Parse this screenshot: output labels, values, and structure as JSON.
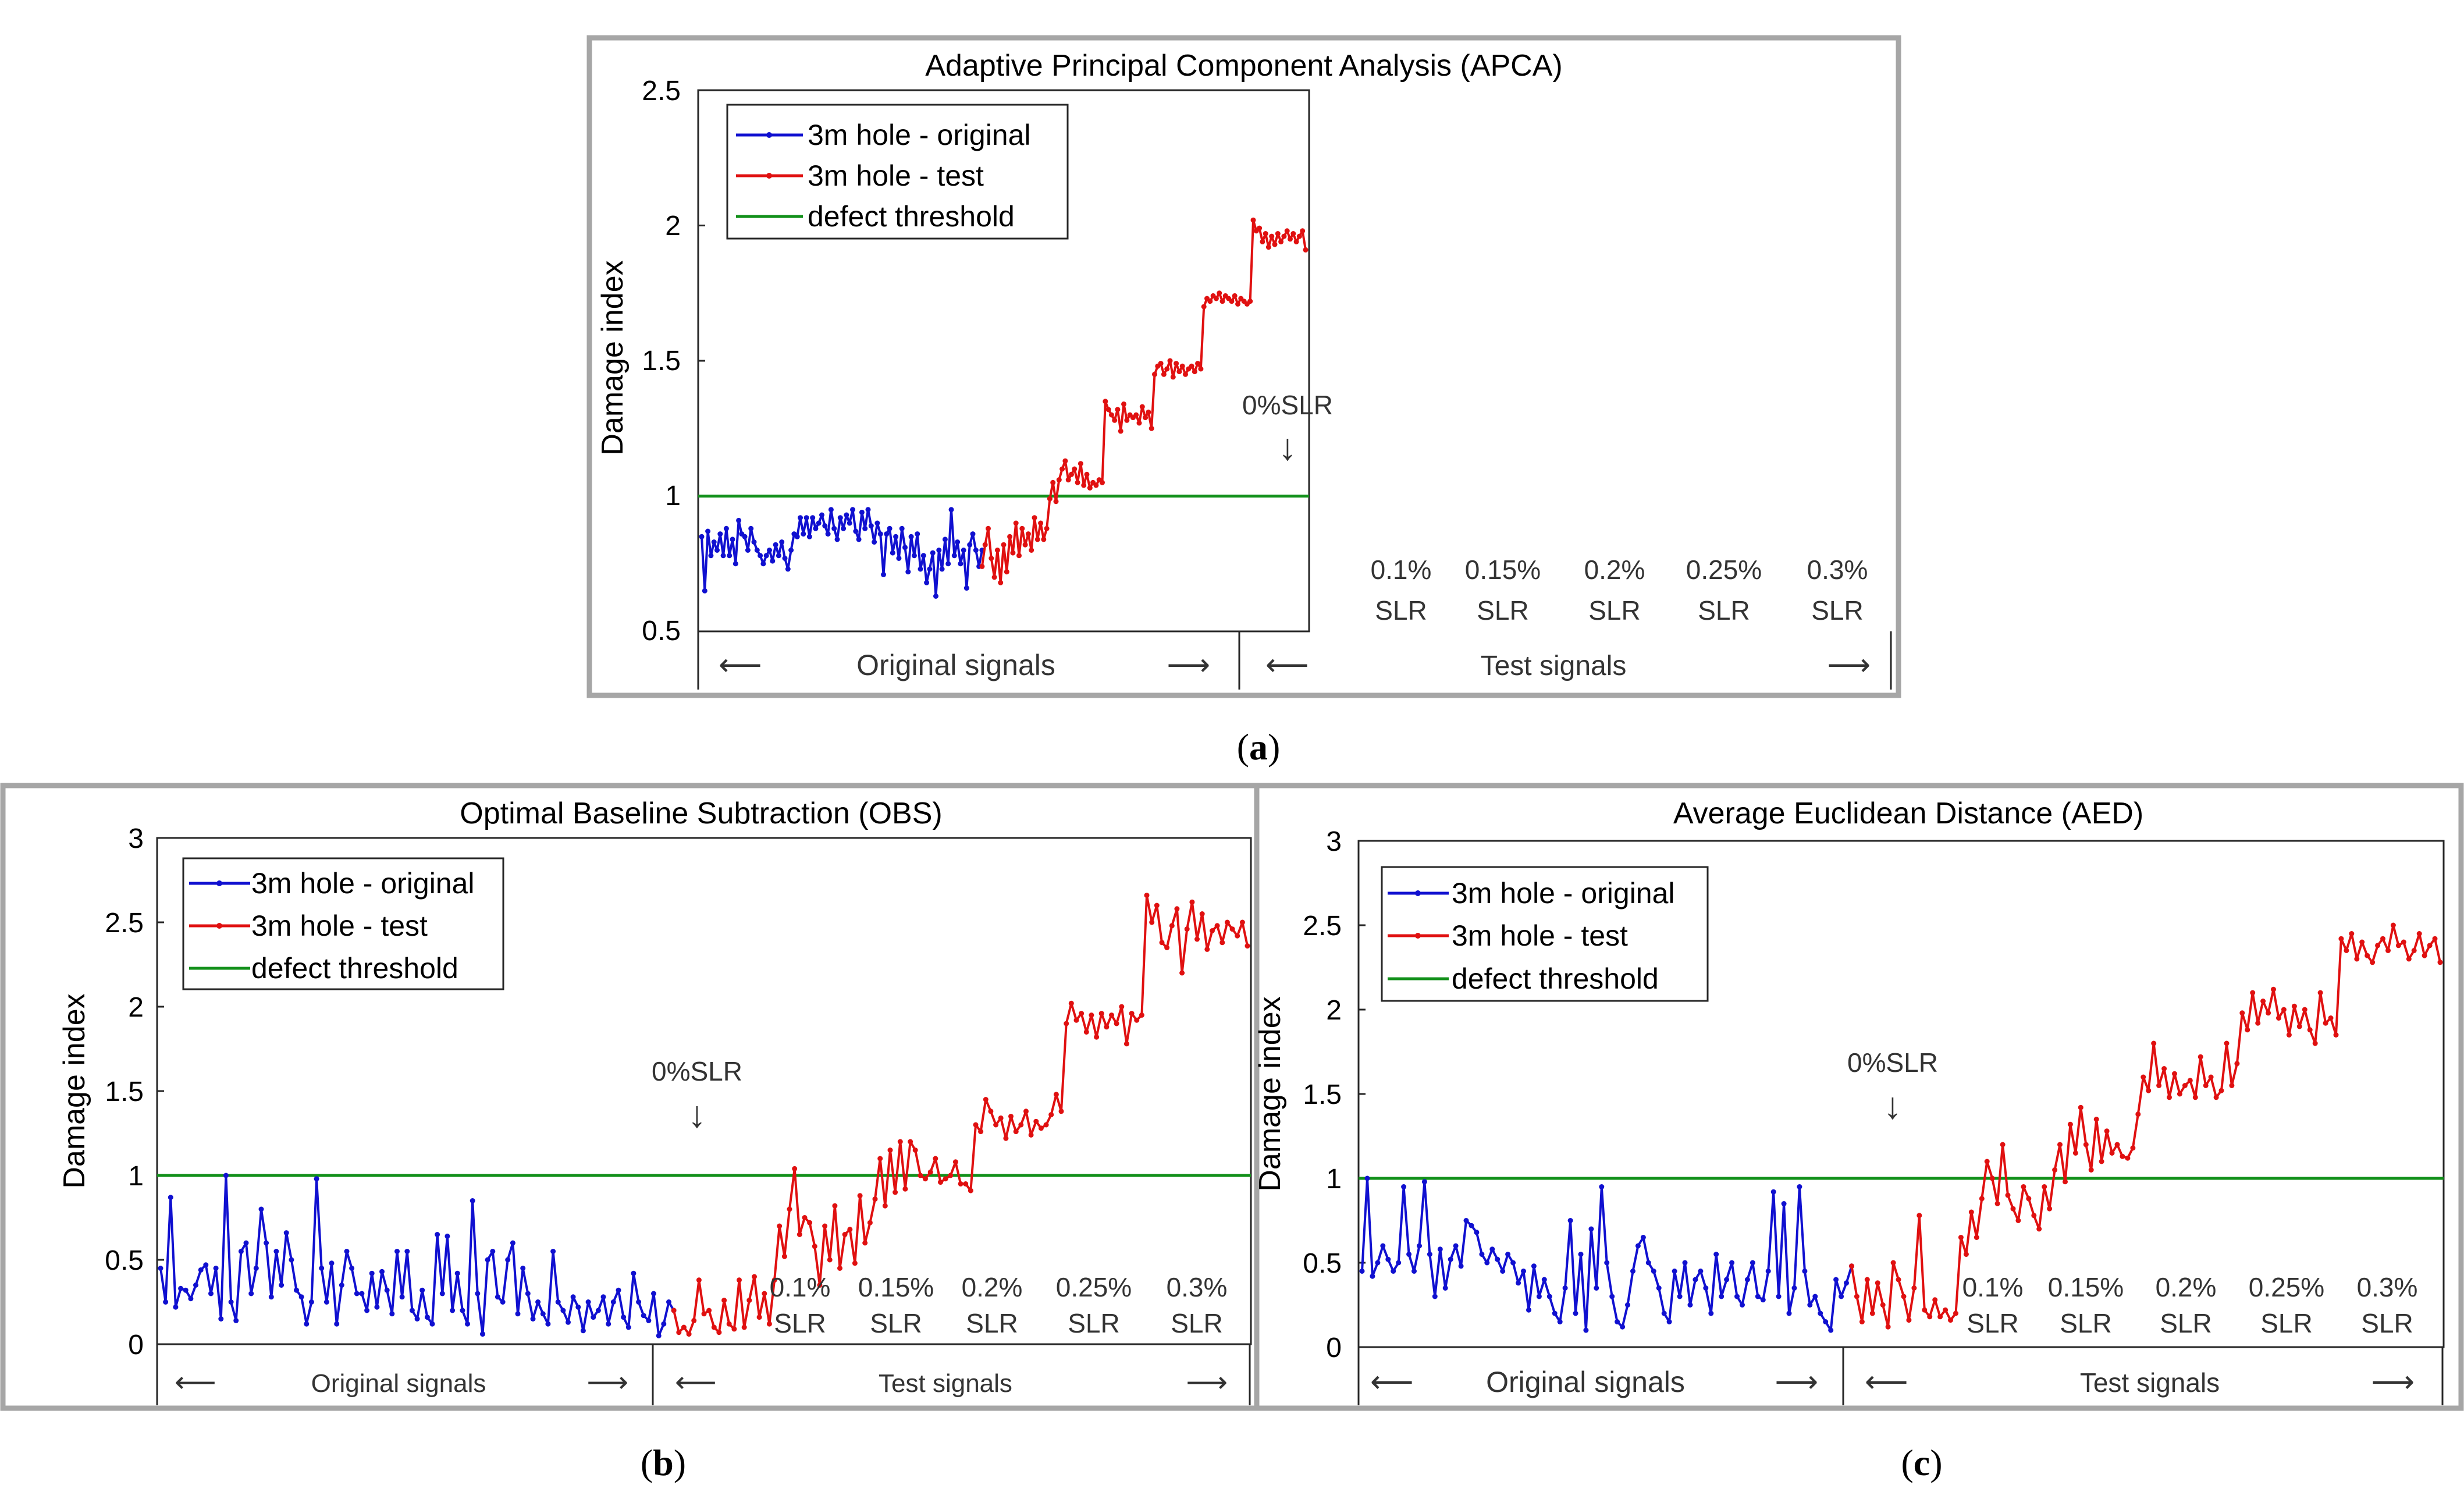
{
  "colors": {
    "original": "#1010d0",
    "test": "#e01010",
    "threshold": "#12901a",
    "frame": "#a6a6a6",
    "axis": "#262626"
  },
  "panel_labels": {
    "a": {
      "open": "(",
      "letter": "a",
      "close": ")"
    },
    "b": {
      "open": "(",
      "letter": "b",
      "close": ")"
    },
    "c": {
      "open": "(",
      "letter": "c",
      "close": ")"
    }
  },
  "chart_data": [
    {
      "id": "a",
      "type": "line",
      "title": "Adaptive Principal Component Analysis (APCA)",
      "ylabel": "Damage index",
      "xlabel": "",
      "ylim": [
        0.5,
        2.5
      ],
      "yticks": [
        "0.5",
        "1",
        "1.5",
        "2",
        "2.5"
      ],
      "ytick_values": [
        0.5,
        1,
        1.5,
        2,
        2.5
      ],
      "threshold": 1,
      "legend": {
        "position": "top-left",
        "entries": [
          "3m hole - original",
          "3m hole - test",
          "defect threshold"
        ]
      },
      "zero_annotation": {
        "text": "0%SLR",
        "arrow": "↓",
        "index": 100
      },
      "section_labels": [
        {
          "pct": "0.1%",
          "unit": "SLR"
        },
        {
          "pct": "0.15%",
          "unit": "SLR"
        },
        {
          "pct": "0.2%",
          "unit": "SLR"
        },
        {
          "pct": "0.25%",
          "unit": "SLR"
        },
        {
          "pct": "0.3%",
          "unit": "SLR"
        }
      ],
      "segment_labels": {
        "original": "Original signals",
        "test": "Test signals",
        "left_arrow": "⟵",
        "right_arrow": "⟶"
      },
      "series": [
        {
          "name": "3m hole - original",
          "x_start": 0,
          "values": [
            0.85,
            0.65,
            0.87,
            0.78,
            0.83,
            0.8,
            0.86,
            0.78,
            0.88,
            0.78,
            0.84,
            0.75,
            0.91,
            0.86,
            0.85,
            0.8,
            0.88,
            0.83,
            0.8,
            0.78,
            0.75,
            0.78,
            0.8,
            0.76,
            0.82,
            0.78,
            0.83,
            0.77,
            0.73,
            0.8,
            0.86,
            0.85,
            0.92,
            0.86,
            0.92,
            0.85,
            0.92,
            0.88,
            0.9,
            0.93,
            0.89,
            0.86,
            0.95,
            0.88,
            0.84,
            0.92,
            0.88,
            0.93,
            0.9,
            0.95,
            0.87,
            0.84,
            0.94,
            0.88,
            0.95,
            0.89,
            0.83,
            0.9,
            0.86,
            0.71,
            0.86,
            0.88,
            0.79,
            0.85,
            0.77,
            0.88,
            0.81,
            0.72,
            0.85,
            0.78,
            0.86,
            0.73,
            0.78,
            0.68,
            0.73,
            0.79,
            0.63,
            0.8,
            0.73,
            0.84,
            0.75,
            0.95,
            0.78,
            0.83,
            0.75,
            0.8,
            0.66,
            0.82,
            0.86,
            0.8,
            0.74,
            0.8
          ]
        },
        {
          "name": "3m hole - test",
          "x_start": 91,
          "values": [
            0.74,
            0.82,
            0.88,
            0.77,
            0.7,
            0.8,
            0.68,
            0.82,
            0.72,
            0.85,
            0.79,
            0.9,
            0.78,
            0.88,
            0.82,
            0.86,
            0.8,
            0.92,
            0.84,
            0.9,
            0.84,
            0.88,
            0.99,
            1.05,
            0.98,
            1.06,
            1.1,
            1.13,
            1.06,
            1.08,
            1.1,
            1.05,
            1.12,
            1.04,
            1.08,
            1.03,
            1.05,
            1.04,
            1.06,
            1.05,
            1.35,
            1.32,
            1.3,
            1.28,
            1.32,
            1.24,
            1.34,
            1.28,
            1.3,
            1.29,
            1.3,
            1.27,
            1.33,
            1.29,
            1.31,
            1.25,
            1.45,
            1.48,
            1.49,
            1.45,
            1.47,
            1.5,
            1.44,
            1.49,
            1.46,
            1.48,
            1.45,
            1.47,
            1.48,
            1.46,
            1.49,
            1.47,
            1.7,
            1.73,
            1.72,
            1.74,
            1.73,
            1.75,
            1.72,
            1.74,
            1.73,
            1.72,
            1.74,
            1.71,
            1.73,
            1.72,
            1.71,
            1.72,
            2.02,
            1.98,
            1.99,
            1.94,
            1.97,
            1.92,
            1.96,
            1.93,
            1.97,
            1.94,
            1.96,
            1.98,
            1.95,
            1.97,
            1.94,
            1.96,
            1.98,
            1.91
          ]
        }
      ]
    },
    {
      "id": "b",
      "type": "line",
      "title": "Optimal Baseline Subtraction  (OBS)",
      "ylabel": "Damage index",
      "xlabel": "",
      "ylim": [
        0,
        3
      ],
      "yticks": [
        "0",
        "0.5",
        "1",
        "1.5",
        "2",
        "2.5",
        "3"
      ],
      "ytick_values": [
        0,
        0.5,
        1,
        1.5,
        2,
        2.5,
        3
      ],
      "threshold": 1,
      "legend": {
        "position": "top-left",
        "entries": [
          "3m hole - original",
          "3m hole - test",
          "defect threshold"
        ]
      },
      "zero_annotation": {
        "text": "0%SLR",
        "arrow": "↓",
        "index": 100
      },
      "section_labels": [
        {
          "pct": "0.1%",
          "unit": "SLR"
        },
        {
          "pct": "0.15%",
          "unit": "SLR"
        },
        {
          "pct": "0.2%",
          "unit": "SLR"
        },
        {
          "pct": "0.25%",
          "unit": "SLR"
        },
        {
          "pct": "0.3%",
          "unit": "SLR"
        }
      ],
      "segment_labels": {
        "original": "Original signals",
        "test": "Test signals",
        "left_arrow": "⟵",
        "right_arrow": "⟶"
      },
      "series": [
        {
          "name": "3m hole - original",
          "x_start": 0,
          "values": [
            0.45,
            0.25,
            0.87,
            0.22,
            0.33,
            0.32,
            0.27,
            0.35,
            0.44,
            0.47,
            0.3,
            0.45,
            0.15,
            1.0,
            0.25,
            0.14,
            0.55,
            0.6,
            0.3,
            0.45,
            0.8,
            0.6,
            0.28,
            0.55,
            0.35,
            0.66,
            0.5,
            0.32,
            0.28,
            0.12,
            0.25,
            0.98,
            0.45,
            0.25,
            0.48,
            0.12,
            0.35,
            0.55,
            0.45,
            0.3,
            0.3,
            0.2,
            0.42,
            0.22,
            0.43,
            0.32,
            0.18,
            0.55,
            0.28,
            0.55,
            0.2,
            0.15,
            0.32,
            0.16,
            0.12,
            0.65,
            0.3,
            0.64,
            0.2,
            0.42,
            0.2,
            0.12,
            0.85,
            0.3,
            0.06,
            0.5,
            0.55,
            0.28,
            0.25,
            0.5,
            0.6,
            0.18,
            0.45,
            0.3,
            0.15,
            0.25,
            0.18,
            0.12,
            0.55,
            0.25,
            0.2,
            0.13,
            0.28,
            0.22,
            0.08,
            0.25,
            0.16,
            0.2,
            0.28,
            0.12,
            0.25,
            0.32,
            0.16,
            0.1,
            0.42,
            0.25,
            0.17,
            0.14,
            0.3,
            0.05,
            0.12,
            0.25,
            0.2
          ]
        },
        {
          "name": "3m hole - test",
          "x_start": 102,
          "values": [
            0.2,
            0.07,
            0.1,
            0.06,
            0.14,
            0.38,
            0.18,
            0.2,
            0.1,
            0.07,
            0.26,
            0.12,
            0.09,
            0.38,
            0.1,
            0.26,
            0.4,
            0.16,
            0.3,
            0.12,
            0.38,
            0.7,
            0.52,
            0.8,
            1.04,
            0.65,
            0.75,
            0.72,
            0.58,
            0.35,
            0.7,
            0.5,
            0.82,
            0.45,
            0.65,
            0.68,
            0.48,
            0.88,
            0.6,
            0.72,
            0.86,
            1.1,
            0.82,
            1.15,
            0.9,
            1.2,
            0.92,
            1.2,
            1.15,
            1.0,
            0.98,
            1.02,
            1.1,
            0.96,
            0.98,
            1.0,
            1.08,
            0.95,
            0.95,
            0.91,
            1.3,
            1.26,
            1.45,
            1.38,
            1.3,
            1.34,
            1.22,
            1.35,
            1.26,
            1.3,
            1.38,
            1.24,
            1.32,
            1.28,
            1.3,
            1.36,
            1.48,
            1.38,
            1.9,
            2.02,
            1.92,
            1.96,
            1.85,
            1.95,
            1.82,
            1.96,
            1.88,
            1.95,
            1.9,
            2.0,
            1.78,
            1.96,
            1.92,
            1.95,
            2.66,
            2.5,
            2.6,
            2.38,
            2.35,
            2.48,
            2.58,
            2.2,
            2.46,
            2.62,
            2.4,
            2.55,
            2.34,
            2.45,
            2.48,
            2.38,
            2.5,
            2.46,
            2.42,
            2.5,
            2.36
          ]
        }
      ]
    },
    {
      "id": "c",
      "type": "line",
      "title": "Average Euclidean Distance (AED)",
      "ylabel": "Damage index",
      "xlabel": "",
      "ylim": [
        0,
        3
      ],
      "yticks": [
        "0",
        "0.5",
        "1",
        "1.5",
        "2",
        "2.5",
        "3"
      ],
      "ytick_values": [
        0,
        0.5,
        1,
        1.5,
        2,
        2.5,
        3
      ],
      "threshold": 1,
      "legend": {
        "position": "top-left",
        "entries": [
          "3m hole - original",
          "3m hole - test",
          "defect threshold"
        ]
      },
      "zero_annotation": {
        "text": "0%SLR",
        "arrow": "↓",
        "index": 100
      },
      "section_labels": [
        {
          "pct": "0.1%",
          "unit": "SLR"
        },
        {
          "pct": "0.15%",
          "unit": "SLR"
        },
        {
          "pct": "0.2%",
          "unit": "SLR"
        },
        {
          "pct": "0.25%",
          "unit": "SLR"
        },
        {
          "pct": "0.3%",
          "unit": "SLR"
        }
      ],
      "segment_labels": {
        "original": "Original signals",
        "test": "Test signals",
        "left_arrow": "⟵",
        "right_arrow": "⟶"
      },
      "series": [
        {
          "name": "3m hole - original",
          "x_start": 0,
          "values": [
            0.45,
            1.0,
            0.42,
            0.5,
            0.6,
            0.52,
            0.45,
            0.5,
            0.95,
            0.55,
            0.45,
            0.6,
            0.98,
            0.55,
            0.3,
            0.58,
            0.35,
            0.52,
            0.6,
            0.48,
            0.75,
            0.72,
            0.68,
            0.55,
            0.5,
            0.58,
            0.52,
            0.45,
            0.55,
            0.5,
            0.38,
            0.45,
            0.22,
            0.48,
            0.3,
            0.4,
            0.3,
            0.2,
            0.15,
            0.35,
            0.75,
            0.2,
            0.55,
            0.1,
            0.7,
            0.35,
            0.95,
            0.5,
            0.3,
            0.15,
            0.12,
            0.25,
            0.45,
            0.6,
            0.65,
            0.5,
            0.45,
            0.35,
            0.2,
            0.15,
            0.45,
            0.3,
            0.5,
            0.25,
            0.4,
            0.45,
            0.35,
            0.2,
            0.55,
            0.3,
            0.4,
            0.5,
            0.3,
            0.25,
            0.4,
            0.5,
            0.3,
            0.28,
            0.45,
            0.92,
            0.3,
            0.85,
            0.2,
            0.35,
            0.95,
            0.45,
            0.25,
            0.3,
            0.2,
            0.15,
            0.1,
            0.4,
            0.3,
            0.38,
            0.48
          ]
        },
        {
          "name": "3m hole - test",
          "x_start": 94,
          "values": [
            0.48,
            0.3,
            0.15,
            0.4,
            0.2,
            0.38,
            0.25,
            0.12,
            0.5,
            0.4,
            0.3,
            0.16,
            0.35,
            0.78,
            0.22,
            0.18,
            0.28,
            0.18,
            0.22,
            0.16,
            0.2,
            0.65,
            0.55,
            0.8,
            0.65,
            0.88,
            1.1,
            1.0,
            0.85,
            1.2,
            0.9,
            0.82,
            0.75,
            0.95,
            0.88,
            0.78,
            0.7,
            0.95,
            0.82,
            1.05,
            1.2,
            0.98,
            1.32,
            1.15,
            1.42,
            1.2,
            1.05,
            1.35,
            1.1,
            1.28,
            1.15,
            1.2,
            1.13,
            1.12,
            1.18,
            1.38,
            1.6,
            1.52,
            1.8,
            1.55,
            1.65,
            1.48,
            1.62,
            1.5,
            1.55,
            1.58,
            1.48,
            1.72,
            1.55,
            1.6,
            1.48,
            1.52,
            1.8,
            1.55,
            1.68,
            1.98,
            1.88,
            2.1,
            1.92,
            2.05,
            1.98,
            2.12,
            1.95,
            2.0,
            1.85,
            2.02,
            1.9,
            2.0,
            1.88,
            1.8,
            2.1,
            1.92,
            1.95,
            1.85,
            2.42,
            2.35,
            2.45,
            2.3,
            2.4,
            2.32,
            2.28,
            2.38,
            2.42,
            2.35,
            2.5,
            2.38,
            2.4,
            2.3,
            2.35,
            2.45,
            2.32,
            2.38,
            2.42,
            2.28
          ]
        }
      ]
    }
  ]
}
